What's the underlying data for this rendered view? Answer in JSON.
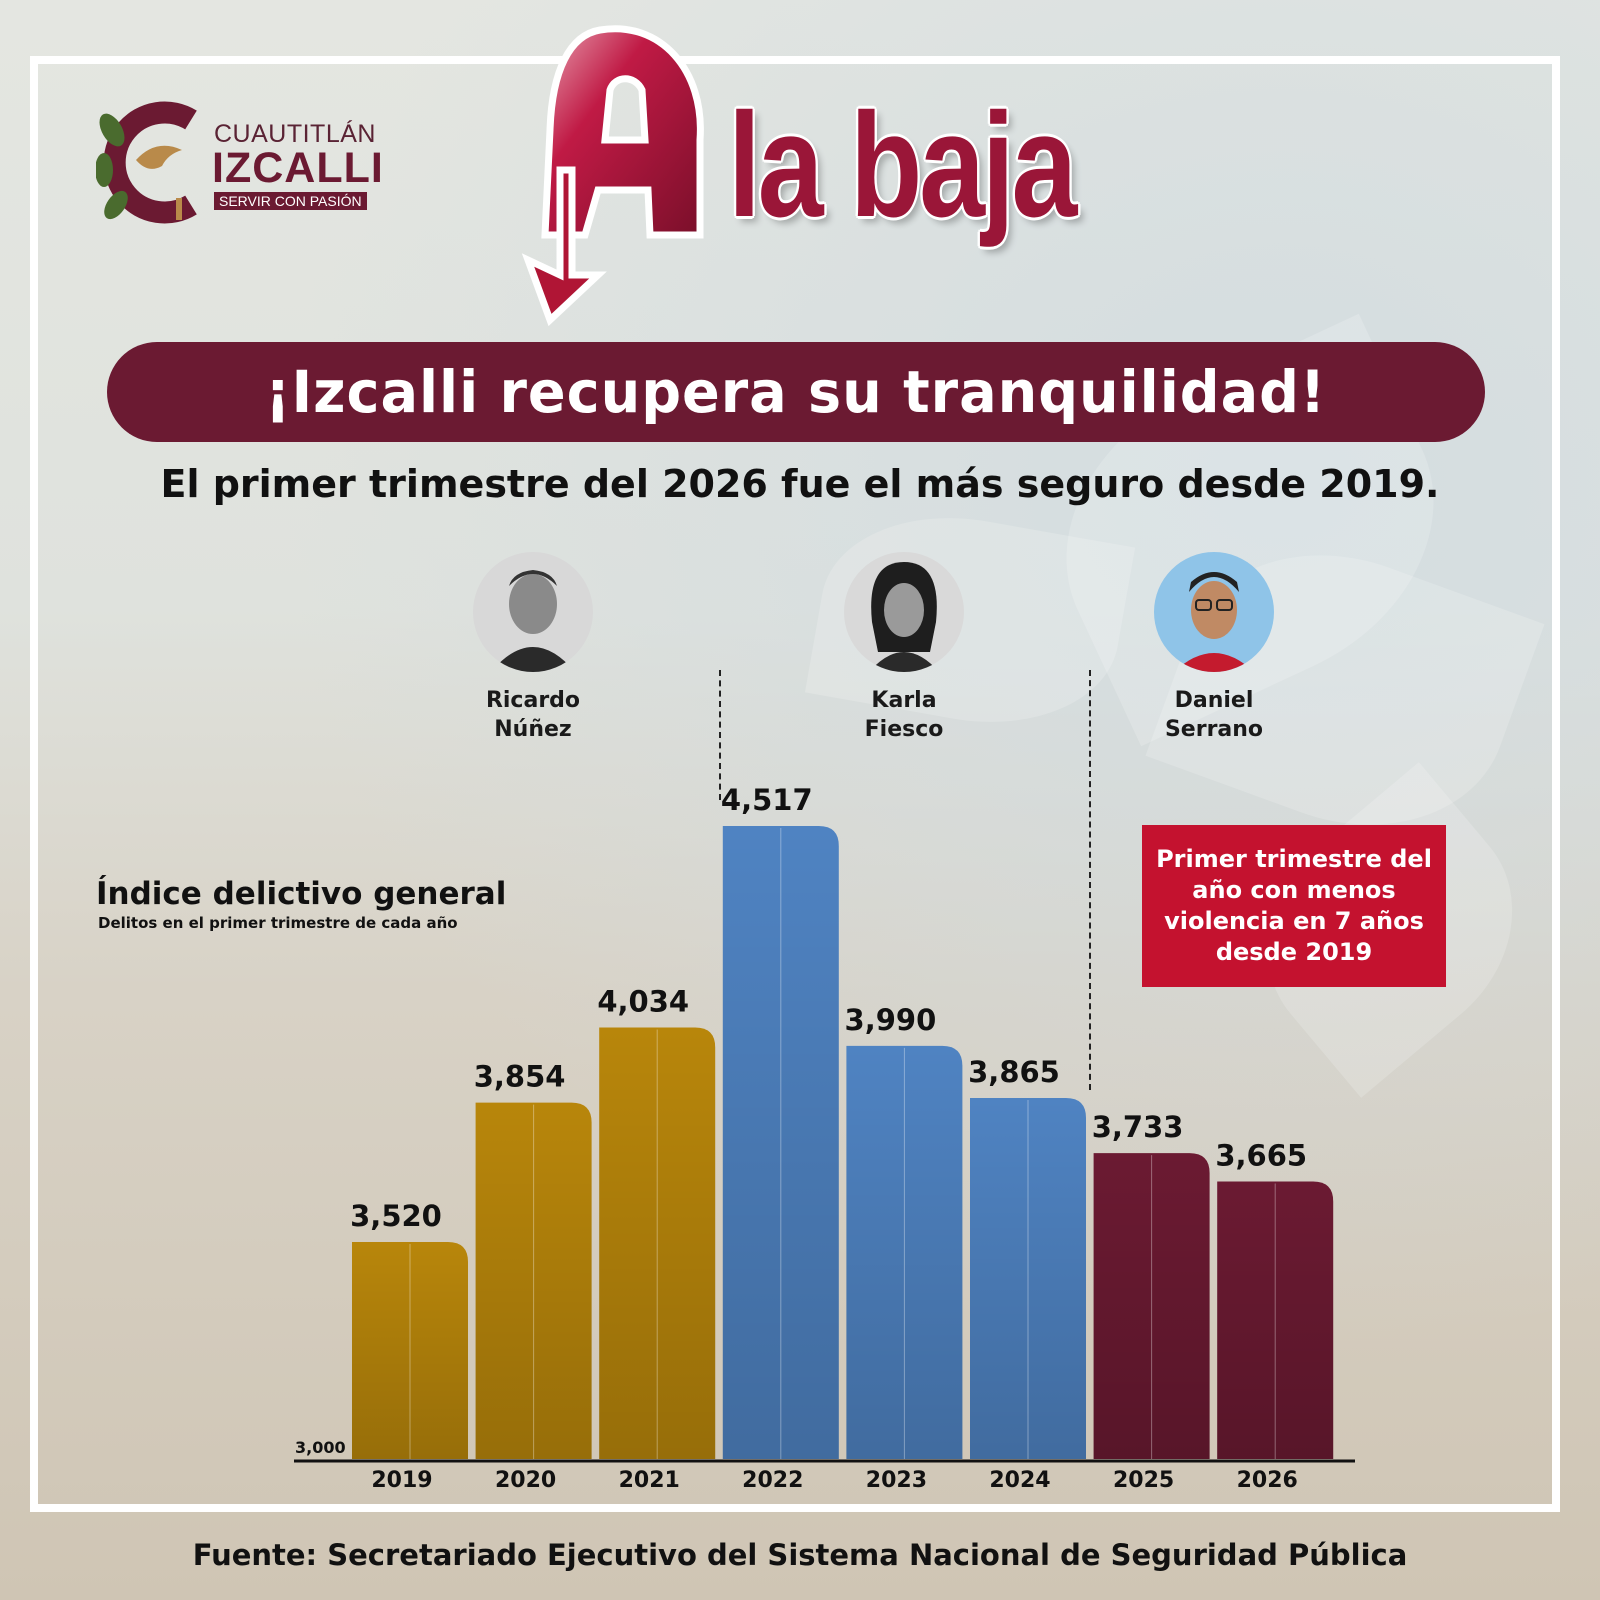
{
  "logo": {
    "city": "CUAUTITLÁN",
    "name": "IZCALLI",
    "slogan": "SERVIR CON PASIÓN",
    "colors": {
      "primary": "#6b1a32",
      "leaf": "#4a6b2e",
      "dove": "#b98a4a"
    }
  },
  "headline": {
    "letter": "A",
    "word": "la baja",
    "color": "#9a1638",
    "icon": "down-arrow-icon"
  },
  "banner": {
    "text": "¡Izcalli recupera su tranquilidad!",
    "color": "#6b1a32"
  },
  "subtitle": "El primer trimestre del 2026 fue el más seguro desde 2019.",
  "people": [
    {
      "name_line1": "Ricardo",
      "name_line2": "Núñez",
      "avatar": "person-avatar-icon"
    },
    {
      "name_line1": "Karla",
      "name_line2": "Fiesco",
      "avatar": "person-avatar-icon"
    },
    {
      "name_line1": "Daniel",
      "name_line2": "Serrano",
      "avatar": "person-avatar-icon"
    }
  ],
  "callout": {
    "text": "Primer trimestre del año con menos violencia en 7 años desde 2019",
    "color": "#c4122f"
  },
  "chart_data": {
    "type": "bar",
    "title": "Índice delictivo general",
    "subtitle": "Delitos en el primer trimestre de cada año",
    "categories": [
      "2019",
      "2020",
      "2021",
      "2022",
      "2023",
      "2024",
      "2025",
      "2026"
    ],
    "values": [
      3520,
      3854,
      4034,
      4517,
      3990,
      3865,
      3733,
      3665
    ],
    "value_labels": [
      "3,520",
      "3,854",
      "4,034",
      "4,517",
      "3,990",
      "3,865",
      "3,733",
      "3,665"
    ],
    "bar_colors": [
      "#b8860b",
      "#b8860b",
      "#b8860b",
      "#4f83c2",
      "#4f83c2",
      "#4f83c2",
      "#6b1a32",
      "#6b1a32"
    ],
    "ylim": [
      3000,
      4517
    ],
    "y_baseline_label": "3,000",
    "grid": false,
    "legend": "none"
  },
  "source": "Fuente: Secretariado Ejecutivo del Sistema Nacional de Seguridad Pública"
}
